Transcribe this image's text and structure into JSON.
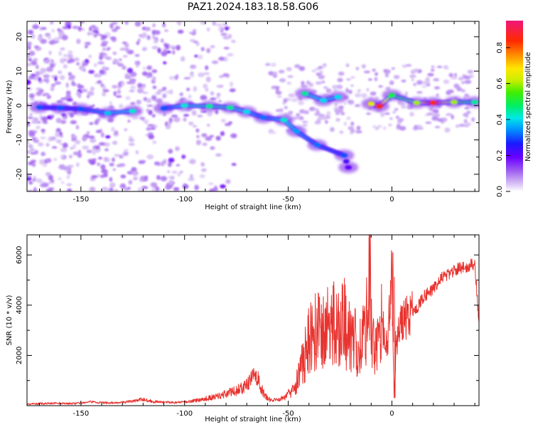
{
  "title": "PAZ1.2024.183.18.58.G06",
  "chart_data": [
    {
      "type": "heatmap",
      "xlabel": "Height of straight line (km)",
      "ylabel": "Frequency (Hz)",
      "xlim": [
        -176,
        42
      ],
      "ylim": [
        -25,
        24.5
      ],
      "xticks": [
        -150,
        -100,
        -50,
        0
      ],
      "yticks": [
        -20,
        -10,
        0,
        10,
        20
      ],
      "colorbar": {
        "label": "Normalized spectral amplitude",
        "range": [
          0,
          0.95
        ],
        "ticks": [
          0.0,
          0.2,
          0.4,
          0.6,
          0.8
        ],
        "colormap": "rainbow (violet to red)"
      },
      "ridge": [
        {
          "x": -170,
          "y": -0.5,
          "a": 0.3
        },
        {
          "x": -160,
          "y": -0.7,
          "a": 0.3
        },
        {
          "x": -150,
          "y": -1.0,
          "a": 0.3
        },
        {
          "x": -137,
          "y": -2.2,
          "a": 0.38
        },
        {
          "x": -125,
          "y": -1.6,
          "a": 0.42
        },
        {
          "x": -110,
          "y": -0.8,
          "a": 0.3
        },
        {
          "x": -100,
          "y": 0.0,
          "a": 0.42
        },
        {
          "x": -88,
          "y": -0.2,
          "a": 0.45
        },
        {
          "x": -78,
          "y": -0.6,
          "a": 0.45
        },
        {
          "x": -70,
          "y": -1.8,
          "a": 0.4
        },
        {
          "x": -62,
          "y": -3.5,
          "a": 0.32
        },
        {
          "x": -52,
          "y": -4.2,
          "a": 0.42
        },
        {
          "x": -46,
          "y": -7.5,
          "a": 0.35
        },
        {
          "x": -36,
          "y": -11.5,
          "a": 0.32
        },
        {
          "x": -23,
          "y": -14.5,
          "a": 0.3
        },
        {
          "x": -21,
          "y": -18.0,
          "a": 0.2
        },
        {
          "x": -42,
          "y": 3.5,
          "a": 0.45
        },
        {
          "x": -33,
          "y": 1.5,
          "a": 0.4
        },
        {
          "x": -26,
          "y": 2.5,
          "a": 0.4
        },
        {
          "x": -10,
          "y": 0.5,
          "a": 0.65
        },
        {
          "x": -6,
          "y": -0.2,
          "a": 0.85
        },
        {
          "x": 0,
          "y": 3.0,
          "a": 0.5
        },
        {
          "x": 12,
          "y": 0.8,
          "a": 0.6
        },
        {
          "x": 20,
          "y": 0.8,
          "a": 0.85
        },
        {
          "x": 30,
          "y": 1.0,
          "a": 0.6
        },
        {
          "x": 40,
          "y": 1.0,
          "a": 0.45
        }
      ]
    },
    {
      "type": "line",
      "xlabel": "Height of straight line (km)",
      "ylabel": "SNR (10 * v/v)",
      "xlim": [
        -176,
        42
      ],
      "ylim": [
        0,
        6800
      ],
      "xticks": [
        -150,
        -100,
        -50,
        0
      ],
      "yticks": [
        2000,
        4000,
        6000
      ],
      "color": "#e8332f",
      "series": [
        {
          "x": [
            -176,
            -170,
            -165,
            -160,
            -155,
            -150,
            -145,
            -140,
            -135,
            -130,
            -125,
            -120,
            -115,
            -110,
            -105,
            -100,
            -95,
            -90,
            -85,
            -80,
            -75,
            -72,
            -70,
            -68,
            -66,
            -64,
            -62,
            -60,
            -58,
            -55,
            -52,
            -50,
            -48,
            -46,
            -44,
            -42,
            -40,
            -38,
            -36,
            -34,
            -32,
            -30,
            -28,
            -26,
            -24,
            -22,
            -20,
            -18,
            -16,
            -14,
            -12,
            -11,
            -10,
            -9,
            -8,
            -6,
            -4,
            -2,
            0,
            1,
            2,
            4,
            6,
            8,
            10,
            12,
            14,
            16,
            18,
            20,
            22,
            24,
            26,
            28,
            30,
            32,
            34,
            36,
            38,
            40,
            42
          ],
          "y": [
            60,
            80,
            90,
            100,
            80,
            100,
            150,
            120,
            110,
            130,
            180,
            250,
            160,
            140,
            120,
            150,
            200,
            280,
            350,
            480,
            600,
            720,
            800,
            1000,
            1350,
            900,
            500,
            300,
            200,
            250,
            300,
            500,
            800,
            1000,
            1400,
            2000,
            2600,
            2800,
            3200,
            2600,
            3400,
            2700,
            3600,
            2800,
            3600,
            3000,
            2700,
            2600,
            2300,
            2800,
            3600,
            6700,
            3400,
            2600,
            2200,
            3300,
            3000,
            2200,
            6100,
            300,
            2300,
            3200,
            3400,
            3600,
            3800,
            3900,
            4200,
            4400,
            4500,
            4700,
            4900,
            5100,
            5200,
            5300,
            5400,
            5450,
            5500,
            5550,
            5600,
            5600,
            3300
          ]
        }
      ]
    }
  ]
}
